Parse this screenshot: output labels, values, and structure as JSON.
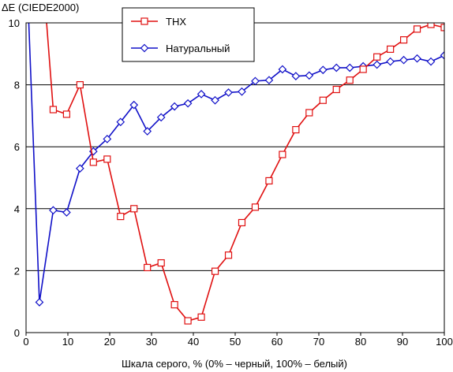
{
  "chart_data": {
    "type": "line",
    "ylabel": "ΔE (CIEDE2000)",
    "xlabel": "Шкала серого, % (0% – черный, 100% – белый)",
    "xlim": [
      0,
      100
    ],
    "ylim": [
      0,
      10
    ],
    "x_ticks": [
      "0",
      "10",
      "20",
      "30",
      "40",
      "50",
      "60",
      "70",
      "80",
      "90",
      "100"
    ],
    "y_ticks": [
      "0",
      "2",
      "4",
      "6",
      "8",
      "10"
    ],
    "grid": "horizontal",
    "legend_position": "top-center",
    "series": [
      {
        "name": "THX",
        "color": "#e01010",
        "marker": "square",
        "x": [
          6.5,
          9.7,
          12.9,
          16.1,
          19.4,
          22.6,
          25.8,
          29.0,
          32.3,
          35.5,
          38.7,
          41.9,
          45.2,
          48.4,
          51.6,
          54.8,
          58.1,
          61.3,
          64.5,
          67.7,
          71.0,
          74.2,
          77.4,
          80.6,
          83.9,
          87.1,
          90.3,
          93.5,
          96.8,
          100
        ],
        "y": [
          7.2,
          7.05,
          8.0,
          5.5,
          5.6,
          3.75,
          4.0,
          2.1,
          2.25,
          0.9,
          0.38,
          0.5,
          1.98,
          2.5,
          3.55,
          4.05,
          4.9,
          5.75,
          6.55,
          7.1,
          7.5,
          7.85,
          8.15,
          8.5,
          8.9,
          9.15,
          9.45,
          9.8,
          9.95,
          9.85
        ],
        "line_start": [
          4.8,
          10.2
        ]
      },
      {
        "name": "Натуральный",
        "color": "#1010c8",
        "marker": "diamond",
        "x": [
          3.2,
          6.5,
          9.7,
          12.9,
          16.1,
          19.4,
          22.6,
          25.8,
          29.0,
          32.3,
          35.5,
          38.7,
          41.9,
          45.2,
          48.4,
          51.6,
          54.8,
          58.1,
          61.3,
          64.5,
          67.7,
          71.0,
          74.2,
          77.4,
          80.6,
          83.9,
          87.1,
          90.3,
          93.5,
          96.8,
          100
        ],
        "y": [
          0.98,
          3.95,
          3.88,
          5.3,
          5.85,
          6.25,
          6.8,
          7.35,
          6.5,
          6.95,
          7.3,
          7.4,
          7.7,
          7.5,
          7.75,
          7.78,
          8.12,
          8.15,
          8.5,
          8.28,
          8.3,
          8.48,
          8.55,
          8.55,
          8.6,
          8.65,
          8.75,
          8.8,
          8.85,
          8.75,
          8.95
        ],
        "line_start": [
          0.6,
          10.2
        ]
      }
    ]
  }
}
